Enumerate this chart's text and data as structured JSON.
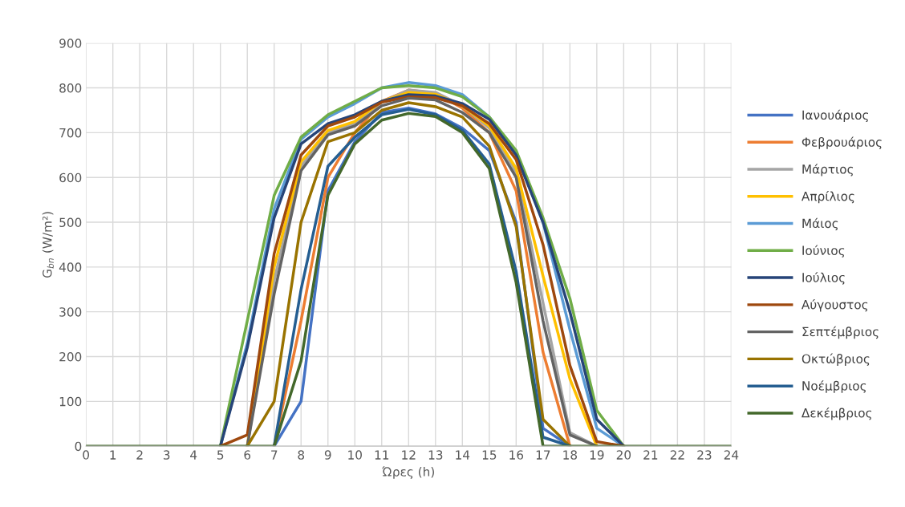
{
  "chart_data": {
    "type": "line",
    "xlabel": "Ώρες (h)",
    "ylabel": "G$_{bn}$ (W/m²)",
    "x": [
      0,
      1,
      2,
      3,
      4,
      5,
      6,
      7,
      8,
      9,
      10,
      11,
      12,
      13,
      14,
      15,
      16,
      17,
      18,
      19,
      20,
      21,
      22,
      23,
      24
    ],
    "xlim": [
      0,
      24
    ],
    "xticks": [
      0,
      1,
      2,
      3,
      4,
      5,
      6,
      7,
      8,
      9,
      10,
      11,
      12,
      13,
      14,
      15,
      16,
      17,
      18,
      19,
      20,
      21,
      22,
      23,
      24
    ],
    "ylim": [
      0,
      900
    ],
    "yticks": [
      0,
      100,
      200,
      300,
      400,
      500,
      600,
      700,
      800,
      900
    ],
    "grid": true,
    "legend": "right",
    "marker": "none",
    "line_style": "solid",
    "series": [
      {
        "name": "Ιανουάριος",
        "color": "#4472c4",
        "values": [
          null,
          null,
          null,
          null,
          null,
          null,
          null,
          0,
          100,
          570,
          680,
          745,
          755,
          742,
          710,
          660,
          500,
          40,
          0,
          null,
          null,
          null,
          null,
          null,
          null
        ]
      },
      {
        "name": "Φεβρουάριος",
        "color": "#ed7d31",
        "values": [
          null,
          null,
          null,
          null,
          null,
          null,
          null,
          0,
          280,
          600,
          700,
          770,
          795,
          788,
          755,
          700,
          570,
          210,
          0,
          null,
          null,
          null,
          null,
          null,
          null
        ]
      },
      {
        "name": "Μάρτιος",
        "color": "#a5a5a5",
        "values": [
          null,
          null,
          null,
          null,
          null,
          null,
          0,
          370,
          625,
          700,
          720,
          768,
          795,
          790,
          760,
          710,
          610,
          320,
          30,
          0,
          null,
          null,
          null,
          null,
          null
        ]
      },
      {
        "name": "Απρίλιος",
        "color": "#ffc000",
        "values": [
          null,
          null,
          null,
          null,
          null,
          null,
          0,
          400,
          635,
          705,
          725,
          770,
          790,
          786,
          760,
          715,
          620,
          380,
          150,
          0,
          null,
          null,
          null,
          null,
          null
        ]
      },
      {
        "name": "Μάιος",
        "color": "#5b9bd5",
        "values": [
          null,
          null,
          null,
          null,
          null,
          0,
          230,
          530,
          685,
          735,
          765,
          800,
          812,
          805,
          785,
          735,
          655,
          500,
          260,
          40,
          0,
          null,
          null,
          null,
          null
        ]
      },
      {
        "name": "Ιούνιος",
        "color": "#70ad47",
        "values": [
          null,
          null,
          null,
          null,
          null,
          0,
          280,
          560,
          690,
          740,
          770,
          800,
          805,
          800,
          780,
          735,
          660,
          510,
          330,
          80,
          0,
          null,
          null,
          null,
          null
        ]
      },
      {
        "name": "Ιούλιος",
        "color": "#264478",
        "values": [
          null,
          null,
          null,
          null,
          null,
          0,
          220,
          510,
          675,
          720,
          740,
          770,
          785,
          782,
          765,
          730,
          650,
          500,
          300,
          60,
          0,
          null,
          null,
          null,
          null
        ]
      },
      {
        "name": "Αύγουστος",
        "color": "#9e480e",
        "values": [
          null,
          null,
          null,
          null,
          null,
          0,
          25,
          430,
          650,
          715,
          735,
          768,
          780,
          778,
          760,
          720,
          640,
          450,
          180,
          10,
          0,
          null,
          null,
          null,
          null
        ]
      },
      {
        "name": "Σεπτέμβριος",
        "color": "#636363",
        "values": [
          null,
          null,
          null,
          null,
          null,
          null,
          0,
          340,
          615,
          695,
          715,
          760,
          777,
          773,
          745,
          700,
          600,
          280,
          25,
          0,
          null,
          null,
          null,
          null,
          null
        ]
      },
      {
        "name": "Οκτώβριος",
        "color": "#997300",
        "values": [
          null,
          null,
          null,
          null,
          null,
          null,
          0,
          100,
          500,
          680,
          700,
          750,
          767,
          758,
          735,
          670,
          490,
          60,
          0,
          null,
          null,
          null,
          null,
          null,
          null
        ]
      },
      {
        "name": "Νοέμβριος",
        "color": "#255e91",
        "values": [
          null,
          null,
          null,
          null,
          null,
          null,
          null,
          0,
          350,
          625,
          690,
          740,
          752,
          740,
          705,
          630,
          390,
          20,
          0,
          null,
          null,
          null,
          null,
          null,
          null
        ]
      },
      {
        "name": "Δεκέμβριος",
        "color": "#43682b",
        "values": [
          0,
          0,
          0,
          0,
          0,
          0,
          0,
          0,
          190,
          560,
          675,
          728,
          743,
          736,
          700,
          620,
          365,
          0,
          0,
          0,
          0,
          0,
          0,
          0,
          0
        ]
      }
    ]
  }
}
